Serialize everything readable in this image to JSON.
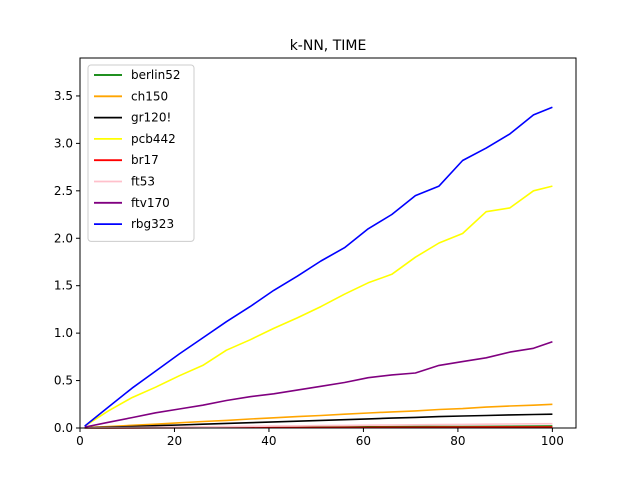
{
  "chart_data": {
    "type": "line",
    "title": "k-NN, TIME",
    "xlabel": "",
    "ylabel": "",
    "xlim": [
      0,
      105
    ],
    "ylim": [
      0,
      3.9
    ],
    "x_ticks": [
      0,
      20,
      40,
      60,
      80,
      100
    ],
    "y_ticks": [
      0.0,
      0.5,
      1.0,
      1.5,
      2.0,
      2.5,
      3.0,
      3.5
    ],
    "x_tick_labels": [
      "0",
      "20",
      "40",
      "60",
      "80",
      "100"
    ],
    "y_tick_labels": [
      "0.0",
      "0.5",
      "1.0",
      "1.5",
      "2.0",
      "2.5",
      "3.0",
      "3.5"
    ],
    "grid": false,
    "legend_position": "top-left",
    "series": [
      {
        "name": "berlin52",
        "color": "#008000",
        "x_start": 1,
        "x_step": 5,
        "values": [
          0.001,
          0.002,
          0.003,
          0.004,
          0.005,
          0.006,
          0.007,
          0.008,
          0.009,
          0.01,
          0.011,
          0.012,
          0.013,
          0.014,
          0.015,
          0.016,
          0.016,
          0.017,
          0.018,
          0.019,
          0.02
        ]
      },
      {
        "name": "ch150",
        "color": "#ffa500",
        "x_start": 1,
        "x_step": 5,
        "values": [
          0.003,
          0.015,
          0.028,
          0.04,
          0.055,
          0.068,
          0.08,
          0.095,
          0.108,
          0.12,
          0.132,
          0.145,
          0.158,
          0.17,
          0.18,
          0.195,
          0.205,
          0.22,
          0.232,
          0.24,
          0.25
        ]
      },
      {
        "name": "gr120!",
        "color": "#000000",
        "x_start": 1,
        "x_step": 5,
        "values": [
          0.002,
          0.008,
          0.016,
          0.024,
          0.032,
          0.04,
          0.048,
          0.056,
          0.064,
          0.072,
          0.08,
          0.088,
          0.096,
          0.104,
          0.112,
          0.12,
          0.126,
          0.132,
          0.138,
          0.142,
          0.145
        ]
      },
      {
        "name": "pcb442",
        "color": "#ffff00",
        "x_start": 1,
        "x_step": 5,
        "values": [
          0.02,
          0.18,
          0.32,
          0.43,
          0.55,
          0.66,
          0.82,
          0.93,
          1.05,
          1.16,
          1.28,
          1.41,
          1.53,
          1.62,
          1.8,
          1.95,
          2.05,
          2.28,
          2.32,
          2.5,
          2.55
        ]
      },
      {
        "name": "br17",
        "color": "#ff0000",
        "x_start": 1,
        "x_step": 5,
        "values": [
          0.0,
          0.001,
          0.001,
          0.002,
          0.002,
          0.003,
          0.003,
          0.004,
          0.004,
          0.005,
          0.005,
          0.006,
          0.006,
          0.007,
          0.007,
          0.008,
          0.008,
          0.009,
          0.009,
          0.01,
          0.01
        ]
      },
      {
        "name": "ft53",
        "color": "#ffc0cb",
        "x_start": 1,
        "x_step": 5,
        "values": [
          0.001,
          0.003,
          0.005,
          0.008,
          0.01,
          0.013,
          0.015,
          0.018,
          0.02,
          0.022,
          0.025,
          0.027,
          0.03,
          0.032,
          0.034,
          0.036,
          0.038,
          0.04,
          0.042,
          0.044,
          0.045
        ]
      },
      {
        "name": "ftv170",
        "color": "#800080",
        "x_start": 1,
        "x_step": 5,
        "values": [
          0.01,
          0.06,
          0.11,
          0.16,
          0.2,
          0.24,
          0.29,
          0.33,
          0.36,
          0.4,
          0.44,
          0.48,
          0.53,
          0.56,
          0.58,
          0.66,
          0.7,
          0.74,
          0.8,
          0.84,
          0.91
        ]
      },
      {
        "name": "rbg323",
        "color": "#0000ff",
        "x_start": 1,
        "x_step": 5,
        "values": [
          0.02,
          0.22,
          0.42,
          0.6,
          0.78,
          0.95,
          1.12,
          1.28,
          1.45,
          1.6,
          1.76,
          1.9,
          2.1,
          2.25,
          2.45,
          2.55,
          2.82,
          2.95,
          3.1,
          3.3,
          3.38
        ]
      }
    ]
  }
}
